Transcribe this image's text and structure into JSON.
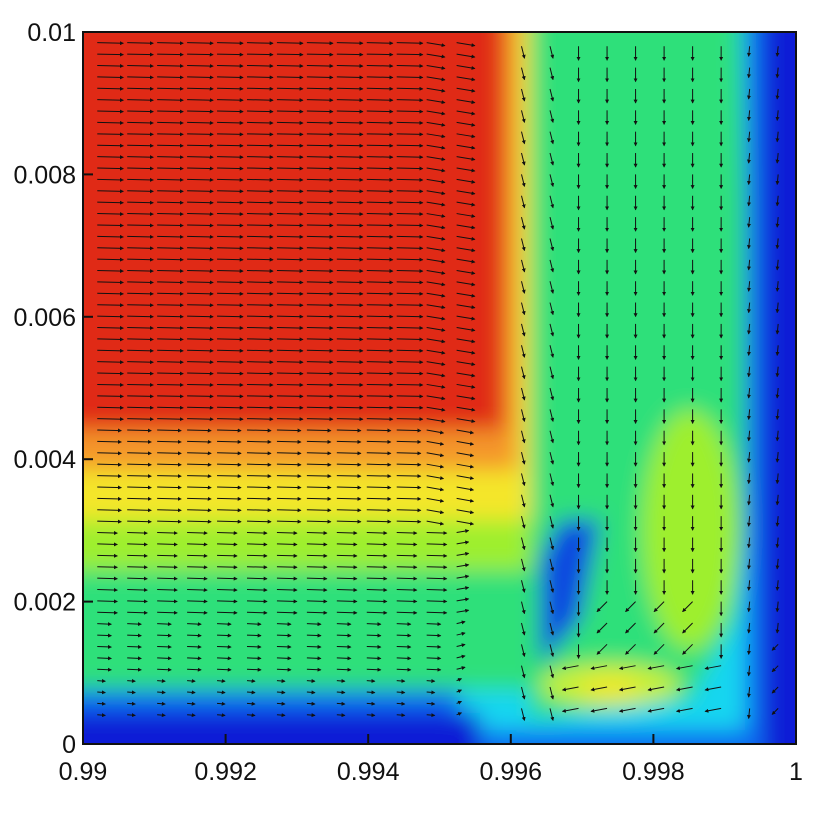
{
  "chart_data": {
    "type": "heatmap",
    "title": "",
    "xlabel": "",
    "ylabel": "",
    "xlim": [
      0.99,
      1.0
    ],
    "ylim": [
      0,
      0.01
    ],
    "x_ticks": [
      {
        "value": 0.99,
        "label": "0.99"
      },
      {
        "value": 0.992,
        "label": "0.992"
      },
      {
        "value": 0.994,
        "label": "0.994"
      },
      {
        "value": 0.996,
        "label": "0.996"
      },
      {
        "value": 0.998,
        "label": "0.998"
      },
      {
        "value": 1.0,
        "label": "1"
      }
    ],
    "y_ticks": [
      {
        "value": 0,
        "label": "0"
      },
      {
        "value": 0.002,
        "label": "0.002"
      },
      {
        "value": 0.004,
        "label": "0.004"
      },
      {
        "value": 0.006,
        "label": "0.006"
      },
      {
        "value": 0.008,
        "label": "0.008"
      },
      {
        "value": 0.01,
        "label": "0.01"
      }
    ],
    "grid": false,
    "legend": "none",
    "colormap": [
      "#0a1cd6",
      "#0c6cf0",
      "#16d6f0",
      "#2de07a",
      "#9eef2e",
      "#f4e62a",
      "#f4962a",
      "#e02a14"
    ],
    "vector_field": {
      "left_region_x_max": 0.9955,
      "left_region_dx": 0.00042,
      "row_spacing": 0.00016,
      "right_columns_x": [
        0.99615,
        0.99655,
        0.99695,
        0.99735,
        0.99775,
        0.99815,
        0.99855,
        0.99895,
        0.99935,
        0.99975
      ],
      "color": "#111111"
    }
  }
}
